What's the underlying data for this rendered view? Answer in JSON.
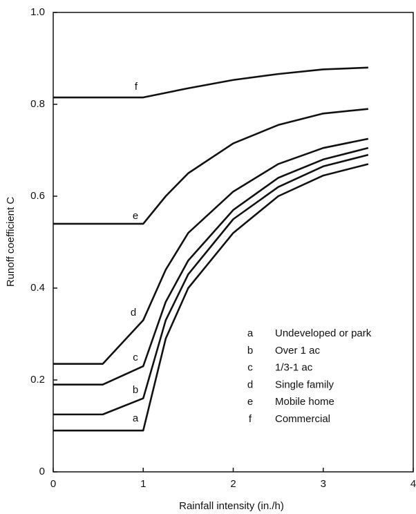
{
  "chart_data": {
    "type": "line",
    "xlabel": "Rainfall intensity (in./h)",
    "ylabel": "Runoff coefficient C",
    "xlim": [
      0,
      4
    ],
    "xticks": [
      0,
      1,
      2,
      3,
      4
    ],
    "ylim": [
      0,
      1
    ],
    "yticks": [
      0,
      0.2,
      0.4,
      0.6,
      0.8,
      {
        "value": 1,
        "label": "1.0"
      }
    ],
    "color": "#111111",
    "series": [
      {
        "code": "a",
        "name": "Undeveloped or park",
        "x": [
          0,
          1,
          1.25,
          1.5,
          2,
          2.5,
          3,
          3.5
        ],
        "values": [
          0.09,
          0.09,
          0.29,
          0.4,
          0.52,
          0.6,
          0.645,
          0.67
        ]
      },
      {
        "code": "b",
        "name": "Over 1 ac",
        "x": [
          0,
          0.55,
          1,
          1.25,
          1.5,
          2,
          2.5,
          3,
          3.5
        ],
        "values": [
          0.125,
          0.125,
          0.16,
          0.33,
          0.43,
          0.55,
          0.62,
          0.665,
          0.69
        ]
      },
      {
        "code": "c",
        "name": "1/3-1 ac",
        "x": [
          0,
          0.55,
          1,
          1.25,
          1.5,
          2,
          2.5,
          3,
          3.5
        ],
        "values": [
          0.19,
          0.19,
          0.23,
          0.37,
          0.46,
          0.57,
          0.64,
          0.68,
          0.705
        ]
      },
      {
        "code": "d",
        "name": "Single family",
        "x": [
          0,
          0.55,
          1,
          1.25,
          1.5,
          2,
          2.5,
          3,
          3.5
        ],
        "values": [
          0.235,
          0.235,
          0.33,
          0.44,
          0.52,
          0.61,
          0.67,
          0.705,
          0.725
        ]
      },
      {
        "code": "e",
        "name": "Mobile home",
        "x": [
          0,
          1,
          1.25,
          1.5,
          2,
          2.5,
          3,
          3.5
        ],
        "values": [
          0.54,
          0.54,
          0.6,
          0.65,
          0.715,
          0.755,
          0.78,
          0.79
        ]
      },
      {
        "code": "f",
        "name": "Commercial",
        "x": [
          0,
          1,
          1.5,
          2,
          2.5,
          3,
          3.5
        ],
        "values": [
          0.815,
          0.815,
          0.835,
          0.853,
          0.866,
          0.876,
          0.88
        ]
      }
    ]
  }
}
